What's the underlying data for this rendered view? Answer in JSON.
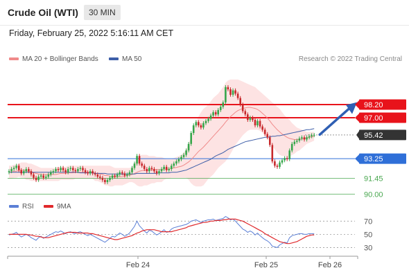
{
  "header": {
    "title": "Crude Oil (WTI)",
    "timeframe": "30 MIN"
  },
  "date_text": "Friday, February 25, 2022 5:16:11 AM CET",
  "legend": {
    "ma20_label": "MA 20 + Bollinger Bands",
    "ma50_label": "MA 50",
    "credit": "Research © 2022 Trading Central",
    "rsi_label": "RSI",
    "rsi_ma_label": "9MA"
  },
  "colors": {
    "resistance": "#e8131b",
    "support": "#2f6fd8",
    "current": "#333333",
    "target_green": "#49a74f",
    "ma20": "#f08a8a",
    "bb_fill": "#fde3e3",
    "ma50": "#3d5ea8",
    "candle_up": "#35a64a",
    "candle_down": "#c7282b",
    "rsi": "#5b7fd6",
    "rsi_ma": "#e0282b",
    "arrow": "#2f5fb3"
  },
  "chart_data": {
    "type": "candlestick",
    "price_axis": {
      "ylim": [
        88.5,
        101.5
      ],
      "gridlines": false
    },
    "x_tick_labels": [
      "Feb 24",
      "Feb 25",
      "Feb 26"
    ],
    "levels": [
      {
        "value": 98.2,
        "label": "98.20",
        "kind": "resistance",
        "boxed": true
      },
      {
        "value": 97.0,
        "label": "97.00",
        "kind": "resistance",
        "boxed": true
      },
      {
        "value": 95.42,
        "label": "95.42",
        "kind": "current",
        "boxed": true
      },
      {
        "value": 93.25,
        "label": "93.25",
        "kind": "support",
        "boxed": true
      },
      {
        "value": 91.45,
        "label": "91.45",
        "kind": "target",
        "boxed": false
      },
      {
        "value": 90.0,
        "label": "90.00",
        "kind": "target",
        "boxed": false
      }
    ],
    "price_series": {
      "close": [
        92.1,
        92.3,
        92.4,
        92.6,
        92.2,
        91.9,
        92.1,
        92.3,
        92.1,
        91.8,
        91.5,
        91.3,
        91.6,
        91.7,
        91.5,
        91.6,
        91.8,
        92.0,
        92.1,
        92.3,
        92.2,
        92.4,
        92.2,
        92.0,
        92.3,
        92.4,
        92.2,
        92.1,
        92.3,
        92.4,
        92.2,
        92.0,
        91.9,
        92.1,
        91.9,
        91.8,
        91.6,
        91.5,
        91.3,
        91.1,
        91.3,
        91.5,
        91.7,
        91.6,
        91.8,
        92.0,
        91.9,
        91.7,
        91.8,
        92.0,
        92.4,
        92.8,
        93.5,
        92.8,
        92.6,
        92.3,
        92.1,
        92.4,
        92.3,
        92.1,
        91.9,
        92.1,
        92.3,
        92.5,
        92.2,
        92.3,
        92.6,
        92.8,
        93.0,
        93.2,
        93.4,
        93.6,
        94.0,
        94.6,
        95.6,
        96.3,
        96.6,
        96.3,
        96.1,
        96.5,
        96.7,
        96.9,
        97.2,
        97.5,
        97.3,
        97.7,
        98.0,
        98.4,
        99.8,
        99.6,
        99.1,
        99.5,
        99.2,
        98.8,
        98.2,
        97.6,
        97.3,
        96.8,
        97.0,
        96.8,
        96.3,
        96.7,
        96.2,
        95.9,
        95.5,
        95.2,
        94.5,
        93.0,
        92.6,
        92.5,
        92.9,
        93.1,
        93.3,
        93.2,
        94.0,
        94.6,
        94.8,
        94.9,
        95.1,
        95.2,
        95.0,
        95.2,
        95.3,
        95.4,
        95.42
      ],
      "ma20": [
        92.0,
        92.0,
        92.1,
        92.1,
        92.2,
        92.2,
        92.2,
        92.1,
        92.1,
        92.0,
        91.95,
        91.9,
        91.85,
        91.8,
        91.8,
        91.8,
        91.8,
        91.8,
        91.8,
        91.8,
        91.85,
        91.9,
        91.9,
        91.9,
        91.95,
        91.95,
        91.95,
        92.0,
        92.0,
        92.0,
        92.0,
        92.0,
        92.0,
        92.0,
        92.0,
        91.9,
        91.9,
        91.85,
        91.8,
        91.7,
        91.7,
        91.65,
        91.6,
        91.6,
        91.6,
        91.6,
        91.6,
        91.65,
        91.7,
        91.75,
        91.8,
        91.9,
        92.0,
        92.1,
        92.15,
        92.2,
        92.2,
        92.2,
        92.25,
        92.25,
        92.25,
        92.25,
        92.25,
        92.3,
        92.3,
        92.3,
        92.35,
        92.4,
        92.45,
        92.5,
        92.55,
        92.65,
        92.8,
        92.95,
        93.15,
        93.4,
        93.65,
        93.9,
        94.1,
        94.3,
        94.55,
        94.8,
        95.05,
        95.3,
        95.55,
        95.8,
        96.05,
        96.3,
        96.6,
        96.85,
        97.1,
        97.3,
        97.5,
        97.65,
        97.75,
        97.85,
        97.9,
        97.95,
        97.95,
        97.9,
        97.85,
        97.75,
        97.6,
        97.4,
        97.2,
        96.95,
        96.7,
        96.4,
        96.15,
        95.9,
        95.7,
        95.5,
        95.35,
        95.2,
        95.1,
        95.05,
        95.0,
        95.0,
        95.0,
        95.05,
        95.1,
        95.15,
        95.2,
        95.25,
        95.3
      ],
      "bb_upper": [
        92.6,
        92.6,
        92.7,
        92.7,
        92.8,
        92.9,
        92.9,
        92.9,
        92.8,
        92.8,
        92.7,
        92.6,
        92.5,
        92.4,
        92.4,
        92.4,
        92.4,
        92.4,
        92.4,
        92.4,
        92.5,
        92.5,
        92.5,
        92.5,
        92.6,
        92.6,
        92.6,
        92.6,
        92.6,
        92.6,
        92.6,
        92.6,
        92.6,
        92.6,
        92.6,
        92.6,
        92.6,
        92.6,
        92.6,
        92.6,
        92.6,
        92.6,
        92.5,
        92.4,
        92.4,
        92.4,
        92.4,
        92.4,
        92.4,
        92.4,
        92.5,
        92.8,
        93.2,
        93.5,
        93.6,
        93.6,
        93.6,
        93.5,
        93.5,
        93.5,
        93.4,
        93.4,
        93.4,
        93.3,
        93.2,
        93.2,
        93.2,
        93.3,
        93.4,
        93.5,
        93.6,
        93.8,
        94.1,
        94.6,
        95.3,
        96.0,
        96.6,
        97.1,
        97.5,
        97.8,
        98.0,
        98.2,
        98.5,
        98.8,
        99.0,
        99.2,
        99.5,
        99.8,
        100.2,
        100.4,
        100.5,
        100.5,
        100.5,
        100.5,
        100.4,
        100.3,
        100.2,
        100.1,
        100.0,
        99.9,
        99.8,
        99.6,
        99.4,
        99.2,
        99.0,
        98.8,
        98.6,
        98.4,
        98.2,
        98.0,
        97.8,
        97.5,
        97.2,
        97.0,
        96.8,
        96.5,
        96.3,
        96.1,
        96.0,
        95.9,
        95.8,
        95.7,
        95.7,
        95.7,
        95.7
      ],
      "bb_lower": [
        91.4,
        91.4,
        91.5,
        91.5,
        91.6,
        91.5,
        91.5,
        91.3,
        91.3,
        91.2,
        91.2,
        91.2,
        91.2,
        91.2,
        91.2,
        91.2,
        91.2,
        91.2,
        91.2,
        91.2,
        91.2,
        91.3,
        91.3,
        91.3,
        91.3,
        91.3,
        91.3,
        91.4,
        91.4,
        91.4,
        91.4,
        91.4,
        91.4,
        91.4,
        91.4,
        91.2,
        91.2,
        91.1,
        91.0,
        90.8,
        90.8,
        90.7,
        90.7,
        90.8,
        90.8,
        90.8,
        90.8,
        90.9,
        91.0,
        91.1,
        91.1,
        91.0,
        90.8,
        90.7,
        90.7,
        90.8,
        90.8,
        90.9,
        91.0,
        91.0,
        91.1,
        91.1,
        91.1,
        91.3,
        91.4,
        91.4,
        91.5,
        91.5,
        91.5,
        91.5,
        91.5,
        91.5,
        91.5,
        91.3,
        91.0,
        90.8,
        90.7,
        90.7,
        90.7,
        90.8,
        91.1,
        91.4,
        91.6,
        91.8,
        92.1,
        92.4,
        92.6,
        92.8,
        93.0,
        93.3,
        93.7,
        94.1,
        94.5,
        94.8,
        95.1,
        95.4,
        95.6,
        95.8,
        95.9,
        95.9,
        95.9,
        95.9,
        95.8,
        95.6,
        95.4,
        95.1,
        94.8,
        94.4,
        94.1,
        93.8,
        93.6,
        93.5,
        93.5,
        93.4,
        93.4,
        93.6,
        93.7,
        93.9,
        94.0,
        94.2,
        94.4,
        94.6,
        94.7,
        94.8,
        94.9
      ],
      "ma50": [
        92.0,
        92.0,
        92.0,
        92.0,
        92.0,
        92.0,
        92.0,
        92.0,
        92.0,
        92.0,
        92.0,
        92.0,
        92.0,
        92.0,
        92.0,
        92.0,
        92.0,
        92.0,
        92.0,
        92.0,
        92.0,
        92.0,
        92.0,
        92.0,
        92.0,
        92.0,
        92.0,
        92.0,
        92.0,
        91.95,
        91.95,
        91.95,
        91.95,
        91.95,
        91.95,
        91.9,
        91.9,
        91.9,
        91.9,
        91.9,
        91.85,
        91.85,
        91.85,
        91.85,
        91.85,
        91.85,
        91.85,
        91.85,
        91.85,
        91.85,
        91.85,
        91.85,
        91.9,
        91.9,
        91.9,
        91.9,
        91.9,
        91.9,
        91.9,
        91.9,
        91.9,
        91.95,
        91.95,
        91.95,
        91.95,
        91.95,
        92.0,
        92.0,
        92.0,
        92.05,
        92.1,
        92.15,
        92.2,
        92.3,
        92.4,
        92.5,
        92.6,
        92.7,
        92.8,
        92.9,
        93.0,
        93.1,
        93.2,
        93.35,
        93.5,
        93.6,
        93.7,
        93.8,
        93.95,
        94.1,
        94.2,
        94.3,
        94.4,
        94.5,
        94.6,
        94.7,
        94.8,
        94.85,
        94.9,
        94.95,
        95.0,
        95.05,
        95.1,
        95.15,
        95.2,
        95.2,
        95.25,
        95.3,
        95.3,
        95.35,
        95.35,
        95.4,
        95.45,
        95.5,
        95.55,
        95.6,
        95.65,
        95.7,
        95.75,
        95.8,
        95.85,
        95.9,
        95.9,
        95.95,
        96.0
      ]
    },
    "rsi": {
      "ylim": [
        20,
        85
      ],
      "ticks": [
        70,
        50,
        30
      ],
      "values": [
        49,
        50,
        51,
        53,
        49,
        46,
        48,
        50,
        48,
        45,
        43,
        41,
        45,
        47,
        44,
        46,
        48,
        50,
        52,
        54,
        53,
        55,
        53,
        51,
        53,
        54,
        52,
        51,
        53,
        54,
        52,
        50,
        48,
        50,
        48,
        46,
        44,
        42,
        40,
        38,
        41,
        44,
        47,
        46,
        49,
        52,
        50,
        47,
        49,
        52,
        57,
        62,
        70,
        63,
        59,
        55,
        52,
        56,
        55,
        52,
        49,
        51,
        54,
        57,
        53,
        54,
        58,
        60,
        61,
        62,
        63,
        64,
        65,
        67,
        70,
        71,
        72,
        70,
        68,
        70,
        71,
        72,
        72,
        73,
        71,
        72,
        73,
        74,
        77,
        75,
        72,
        73,
        70,
        66,
        62,
        58,
        56,
        53,
        55,
        53,
        49,
        52,
        48,
        45,
        42,
        40,
        37,
        32,
        31,
        30,
        34,
        36,
        38,
        37,
        45,
        48,
        49,
        50,
        51,
        51,
        50,
        50,
        51,
        51,
        51
      ],
      "ma9": [
        50,
        50,
        50,
        50,
        50,
        50,
        50,
        50,
        49,
        49,
        48,
        47,
        47,
        46,
        45,
        45,
        45,
        46,
        47,
        48,
        49,
        50,
        51,
        52,
        53,
        53,
        53,
        53,
        52,
        52,
        52,
        52,
        52,
        51,
        51,
        50,
        49,
        48,
        47,
        46,
        45,
        44,
        43,
        42,
        42,
        43,
        44,
        45,
        46,
        47,
        48,
        50,
        52,
        53,
        55,
        56,
        57,
        57,
        57,
        57,
        56,
        55,
        54,
        54,
        54,
        54,
        54,
        55,
        56,
        57,
        58,
        59,
        60,
        62,
        63,
        64,
        65,
        66,
        67,
        68,
        68,
        69,
        70,
        70,
        71,
        71,
        71,
        72,
        72,
        73,
        73,
        73,
        73,
        72,
        71,
        70,
        68,
        66,
        64,
        62,
        60,
        58,
        56,
        54,
        51,
        49,
        47,
        45,
        43,
        41,
        39,
        38,
        37,
        36,
        36,
        37,
        38,
        39,
        41,
        43,
        45,
        47,
        48,
        49,
        49
      ]
    }
  }
}
